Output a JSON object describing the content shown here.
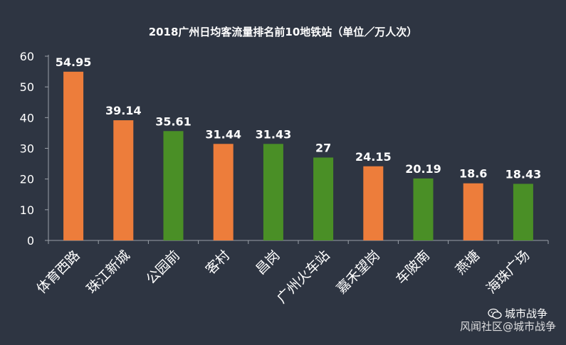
{
  "chart_data": {
    "type": "bar",
    "title": "2018广州日均客流量排名前10地铁站（单位／万人次）",
    "categories": [
      "体育西路",
      "珠江新城",
      "公园前",
      "客村",
      "昌岗",
      "广州火车站",
      "嘉禾望岗",
      "车陂南",
      "燕塘",
      "海珠广场"
    ],
    "values": [
      54.95,
      39.14,
      35.61,
      31.44,
      31.43,
      27,
      24.15,
      20.19,
      18.6,
      18.43
    ],
    "value_labels": [
      "54.95",
      "39.14",
      "35.61",
      "31.44",
      "31.43",
      "27",
      "24.15",
      "20.19",
      "18.6",
      "18.43"
    ],
    "bar_colors": [
      "#ed7d3b",
      "#ed7d3b",
      "#4a8f26",
      "#ed7d3b",
      "#4a8f26",
      "#4a8f26",
      "#ed7d3b",
      "#4a8f26",
      "#ed7d3b",
      "#4a8f26"
    ],
    "ylim": [
      0,
      60
    ],
    "yticks": [
      0,
      10,
      20,
      30,
      40,
      50,
      60
    ],
    "xlabel": "",
    "ylabel": "",
    "grid": false
  },
  "watermark": {
    "account": "城市战争",
    "text": "风闻社区@城市战争"
  },
  "colors": {
    "background": "#2e3542",
    "orange": "#ed7d3b",
    "green": "#4a8f26",
    "axis": "#9aa0a8"
  }
}
